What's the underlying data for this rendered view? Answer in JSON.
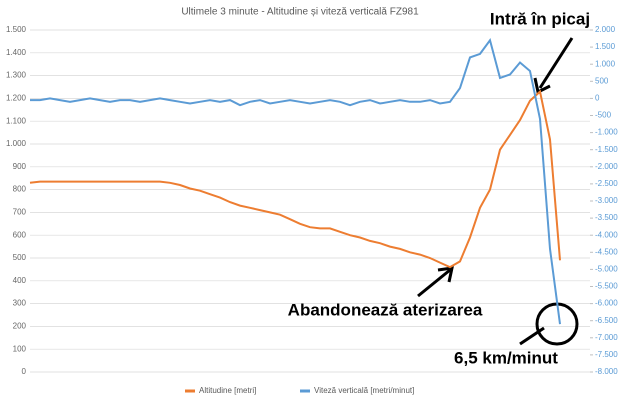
{
  "chart_data": {
    "type": "line",
    "title": "Ultimele 3 minute - Altitudine și viteză verticală FZ981",
    "series": [
      {
        "name": "Altitudine [metri]",
        "color": "#ed7d31",
        "values": [
          830,
          835,
          835,
          835,
          835,
          835,
          835,
          835,
          835,
          835,
          835,
          835,
          835,
          835,
          830,
          820,
          805,
          795,
          780,
          765,
          745,
          730,
          720,
          710,
          700,
          690,
          670,
          650,
          635,
          630,
          630,
          615,
          600,
          590,
          575,
          565,
          550,
          540,
          525,
          515,
          500,
          480,
          460,
          485,
          590,
          720,
          800,
          975,
          1040,
          1105,
          1190,
          1230,
          1020,
          490
        ]
      },
      {
        "name": "Viteză verticală [metri/minut]",
        "color": "#5b9bd5",
        "axis": "y2",
        "values": [
          -50,
          -50,
          0,
          -50,
          -100,
          -50,
          0,
          -50,
          -100,
          -50,
          -50,
          -100,
          -50,
          0,
          -50,
          -100,
          -150,
          -100,
          -50,
          -100,
          -50,
          -200,
          -100,
          -50,
          -150,
          -100,
          -50,
          -100,
          -150,
          -100,
          -50,
          -100,
          -200,
          -100,
          -50,
          -150,
          -100,
          -50,
          -100,
          -100,
          -50,
          -150,
          -100,
          300,
          1200,
          1300,
          1700,
          600,
          700,
          1050,
          800,
          -600,
          -4400,
          -6600
        ]
      }
    ],
    "ylim": [
      0,
      1500
    ],
    "yticks": [
      0,
      100,
      200,
      300,
      400,
      500,
      600,
      700,
      800,
      900,
      {
        "value": 1000,
        "label": "1.000"
      },
      {
        "value": 1100,
        "label": "1.100"
      },
      {
        "value": 1200,
        "label": "1.200"
      },
      {
        "value": 1300,
        "label": "1.300"
      },
      {
        "value": 1400,
        "label": "1.400"
      },
      {
        "value": 1500,
        "label": "1.500"
      }
    ],
    "y2lim": [
      -8000,
      2000
    ],
    "y2ticks": [
      {
        "value": -8000,
        "label": "-8.000"
      },
      {
        "value": -7500,
        "label": "-7.500"
      },
      {
        "value": -7000,
        "label": "-7.000"
      },
      {
        "value": -6500,
        "label": "-6.500"
      },
      {
        "value": -6000,
        "label": "-6.000"
      },
      {
        "value": -5500,
        "label": "-5.500"
      },
      {
        "value": -5000,
        "label": "-5.000"
      },
      {
        "value": -4500,
        "label": "-4.500"
      },
      {
        "value": -4000,
        "label": "-4.000"
      },
      {
        "value": -3500,
        "label": "-3.500"
      },
      {
        "value": -3000,
        "label": "-3.000"
      },
      {
        "value": -2500,
        "label": "-2.500"
      },
      {
        "value": -2000,
        "label": "-2.000"
      },
      {
        "value": -1500,
        "label": "-1.500"
      },
      {
        "value": -1000,
        "label": "-1.000"
      },
      -500,
      0,
      500,
      {
        "value": 1000,
        "label": "1.000"
      },
      {
        "value": 1500,
        "label": "1.500"
      },
      {
        "value": 2000,
        "label": "2.000"
      }
    ],
    "grid": true,
    "annotations": [
      "Intră în picaj",
      "Abandonează aterizarea",
      "6,5 km/minut"
    ]
  }
}
